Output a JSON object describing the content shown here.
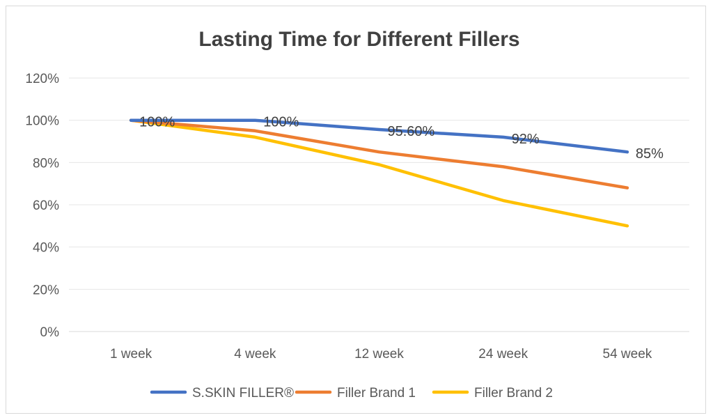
{
  "chart_data": {
    "type": "line",
    "title": "Lasting Time for Different Fillers",
    "categories": [
      "1 week",
      "4 week",
      "12 week",
      "24 week",
      "54 week"
    ],
    "ylim": [
      0,
      120
    ],
    "yticks": [
      0,
      20,
      40,
      60,
      80,
      100,
      120
    ],
    "ytick_labels": [
      "0%",
      "20%",
      "40%",
      "60%",
      "80%",
      "100%",
      "120%"
    ],
    "grid": true,
    "legend_position": "bottom",
    "series": [
      {
        "name": "S.SKIN FILLER®",
        "color": "#4472c4",
        "values": [
          100,
          100,
          95.6,
          92,
          85
        ],
        "data_labels": [
          "100%",
          "100%",
          "95.60%",
          "92%",
          "85%"
        ]
      },
      {
        "name": "Filler Brand 1",
        "color": "#ed7d31",
        "values": [
          100,
          95,
          85,
          78,
          68
        ]
      },
      {
        "name": "Filler Brand 2",
        "color": "#ffc000",
        "values": [
          100,
          92,
          79,
          62,
          50
        ]
      }
    ]
  }
}
